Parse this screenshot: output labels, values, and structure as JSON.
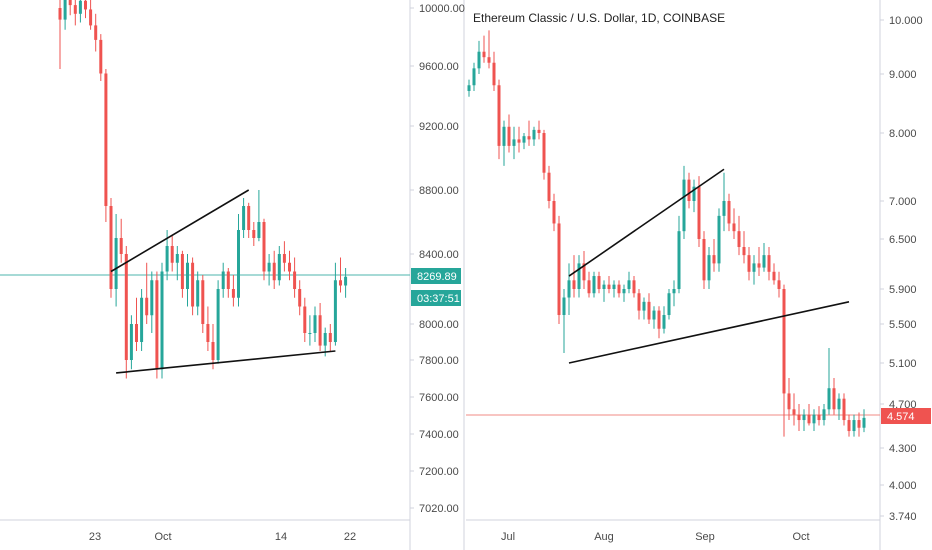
{
  "colors": {
    "up": "#26a69a",
    "down": "#ef5350",
    "axis_text": "#4a4a4a",
    "border": "#d0d3dc",
    "trend": "#111111",
    "left_price_line": "#4db6ac",
    "right_price_line": "#f28b86",
    "left_badge": "#26a69a",
    "right_badge": "#ef5350"
  },
  "chart_data": [
    {
      "type": "candlestick",
      "title": "",
      "scale": "linear",
      "ylim": [
        7000,
        10050
      ],
      "y_ticks": [
        "10000.00",
        "9600.00",
        "9200.00",
        "8800.00",
        "8400.00",
        "8000.00",
        "7800.00",
        "7600.00",
        "7400.00",
        "7200.00",
        "7020.00"
      ],
      "x_ticks": [
        "23",
        "Oct",
        "14",
        "22"
      ],
      "last_price": "8269.89",
      "countdown": "03:37:51",
      "candles": [
        {
          "o": 10000,
          "h": 10120,
          "l": 9580,
          "c": 9920
        },
        {
          "o": 9920,
          "h": 10150,
          "l": 9850,
          "c": 10080
        },
        {
          "o": 10080,
          "h": 10180,
          "l": 9950,
          "c": 10020
        },
        {
          "o": 10020,
          "h": 10100,
          "l": 9880,
          "c": 9960
        },
        {
          "o": 9960,
          "h": 10120,
          "l": 9900,
          "c": 10050
        },
        {
          "o": 10050,
          "h": 10090,
          "l": 9930,
          "c": 9990
        },
        {
          "o": 9990,
          "h": 10060,
          "l": 9850,
          "c": 9880
        },
        {
          "o": 9880,
          "h": 9960,
          "l": 9700,
          "c": 9780
        },
        {
          "o": 9780,
          "h": 9820,
          "l": 9500,
          "c": 9550
        },
        {
          "o": 9550,
          "h": 9580,
          "l": 8600,
          "c": 8700
        },
        {
          "o": 8700,
          "h": 8750,
          "l": 8150,
          "c": 8200
        },
        {
          "o": 8200,
          "h": 8650,
          "l": 8100,
          "c": 8500
        },
        {
          "o": 8500,
          "h": 8620,
          "l": 8350,
          "c": 8400
        },
        {
          "o": 8400,
          "h": 8450,
          "l": 7700,
          "c": 7800
        },
        {
          "o": 7800,
          "h": 8050,
          "l": 7750,
          "c": 8000
        },
        {
          "o": 8000,
          "h": 8150,
          "l": 7850,
          "c": 7900
        },
        {
          "o": 7900,
          "h": 8200,
          "l": 7850,
          "c": 8150
        },
        {
          "o": 8150,
          "h": 8350,
          "l": 8000,
          "c": 8050
        },
        {
          "o": 8050,
          "h": 8300,
          "l": 7950,
          "c": 8250
        },
        {
          "o": 8250,
          "h": 8300,
          "l": 7700,
          "c": 7750
        },
        {
          "o": 7750,
          "h": 8350,
          "l": 7700,
          "c": 8300
        },
        {
          "o": 8300,
          "h": 8550,
          "l": 8250,
          "c": 8450
        },
        {
          "o": 8450,
          "h": 8520,
          "l": 8300,
          "c": 8350
        },
        {
          "o": 8350,
          "h": 8450,
          "l": 8250,
          "c": 8400
        },
        {
          "o": 8400,
          "h": 8420,
          "l": 8150,
          "c": 8200
        },
        {
          "o": 8200,
          "h": 8400,
          "l": 8100,
          "c": 8350
        },
        {
          "o": 8350,
          "h": 8380,
          "l": 8050,
          "c": 8100
        },
        {
          "o": 8100,
          "h": 8300,
          "l": 8050,
          "c": 8250
        },
        {
          "o": 8250,
          "h": 8280,
          "l": 7950,
          "c": 8000
        },
        {
          "o": 8000,
          "h": 8100,
          "l": 7850,
          "c": 7900
        },
        {
          "o": 7900,
          "h": 8000,
          "l": 7750,
          "c": 7800
        },
        {
          "o": 7800,
          "h": 8250,
          "l": 7780,
          "c": 8200
        },
        {
          "o": 8200,
          "h": 8350,
          "l": 8150,
          "c": 8300
        },
        {
          "o": 8300,
          "h": 8320,
          "l": 8150,
          "c": 8200
        },
        {
          "o": 8200,
          "h": 8280,
          "l": 8100,
          "c": 8150
        },
        {
          "o": 8150,
          "h": 8650,
          "l": 8100,
          "c": 8550
        },
        {
          "o": 8550,
          "h": 8750,
          "l": 8500,
          "c": 8700
        },
        {
          "o": 8700,
          "h": 8720,
          "l": 8500,
          "c": 8550
        },
        {
          "o": 8550,
          "h": 8600,
          "l": 8450,
          "c": 8500
        },
        {
          "o": 8500,
          "h": 8800,
          "l": 8480,
          "c": 8600
        },
        {
          "o": 8600,
          "h": 8620,
          "l": 8250,
          "c": 8300
        },
        {
          "o": 8300,
          "h": 8400,
          "l": 8220,
          "c": 8350
        },
        {
          "o": 8350,
          "h": 8420,
          "l": 8200,
          "c": 8250
        },
        {
          "o": 8250,
          "h": 8450,
          "l": 8220,
          "c": 8400
        },
        {
          "o": 8400,
          "h": 8480,
          "l": 8300,
          "c": 8350
        },
        {
          "o": 8350,
          "h": 8420,
          "l": 8250,
          "c": 8300
        },
        {
          "o": 8300,
          "h": 8380,
          "l": 8150,
          "c": 8200
        },
        {
          "o": 8200,
          "h": 8250,
          "l": 8050,
          "c": 8100
        },
        {
          "o": 8100,
          "h": 8150,
          "l": 7900,
          "c": 7950
        },
        {
          "o": 7950,
          "h": 8050,
          "l": 7880,
          "c": 7950
        },
        {
          "o": 7950,
          "h": 8100,
          "l": 7900,
          "c": 8050
        },
        {
          "o": 8050,
          "h": 8120,
          "l": 7850,
          "c": 7880
        },
        {
          "o": 7880,
          "h": 7980,
          "l": 7820,
          "c": 7950
        },
        {
          "o": 7950,
          "h": 8000,
          "l": 7850,
          "c": 7900
        },
        {
          "o": 7900,
          "h": 8350,
          "l": 7880,
          "c": 8250
        },
        {
          "o": 8250,
          "h": 8380,
          "l": 8180,
          "c": 8220
        },
        {
          "o": 8220,
          "h": 8320,
          "l": 8150,
          "c": 8270
        }
      ],
      "trendlines": [
        {
          "from": [
            10,
            8300
          ],
          "to": [
            37,
            8800
          ]
        },
        {
          "from": [
            11,
            7730
          ],
          "to": [
            54,
            7850
          ]
        }
      ]
    },
    {
      "type": "candlestick",
      "title": "Ethereum Classic / U.S. Dollar, 1D, COINBASE",
      "scale": "log",
      "ylim": [
        3.74,
        10.5
      ],
      "y_ticks": [
        "10.000",
        "9.000",
        "8.000",
        "7.000",
        "6.500",
        "5.900",
        "5.500",
        "5.100",
        "4.700",
        "4.300",
        "4.000",
        "3.740"
      ],
      "x_ticks": [
        "Jul",
        "Aug",
        "Sep",
        "Oct"
      ],
      "last_price": "4.574",
      "candles": [
        {
          "o": 8.7,
          "h": 8.9,
          "l": 8.6,
          "c": 8.8
        },
        {
          "o": 8.8,
          "h": 9.2,
          "l": 8.7,
          "c": 9.1
        },
        {
          "o": 9.1,
          "h": 9.6,
          "l": 9.0,
          "c": 9.4
        },
        {
          "o": 9.4,
          "h": 9.7,
          "l": 9.2,
          "c": 9.3
        },
        {
          "o": 9.3,
          "h": 9.8,
          "l": 9.1,
          "c": 9.2
        },
        {
          "o": 9.2,
          "h": 9.4,
          "l": 8.7,
          "c": 8.8
        },
        {
          "o": 8.8,
          "h": 8.9,
          "l": 7.6,
          "c": 7.8
        },
        {
          "o": 7.8,
          "h": 8.2,
          "l": 7.5,
          "c": 8.1
        },
        {
          "o": 8.1,
          "h": 8.3,
          "l": 7.7,
          "c": 7.8
        },
        {
          "o": 7.8,
          "h": 8.1,
          "l": 7.6,
          "c": 7.9
        },
        {
          "o": 7.9,
          "h": 8.1,
          "l": 7.7,
          "c": 7.85
        },
        {
          "o": 7.85,
          "h": 8.0,
          "l": 7.75,
          "c": 7.95
        },
        {
          "o": 7.95,
          "h": 8.2,
          "l": 7.8,
          "c": 7.9
        },
        {
          "o": 7.9,
          "h": 8.1,
          "l": 7.8,
          "c": 8.05
        },
        {
          "o": 8.05,
          "h": 8.2,
          "l": 7.9,
          "c": 8.0
        },
        {
          "o": 8.0,
          "h": 8.05,
          "l": 7.3,
          "c": 7.4
        },
        {
          "o": 7.4,
          "h": 7.5,
          "l": 6.9,
          "c": 7.0
        },
        {
          "o": 7.0,
          "h": 7.1,
          "l": 6.6,
          "c": 6.7
        },
        {
          "o": 6.7,
          "h": 6.8,
          "l": 5.5,
          "c": 5.6
        },
        {
          "o": 5.6,
          "h": 5.9,
          "l": 5.2,
          "c": 5.8
        },
        {
          "o": 5.8,
          "h": 6.2,
          "l": 5.6,
          "c": 6.0
        },
        {
          "o": 6.0,
          "h": 6.3,
          "l": 5.8,
          "c": 5.9
        },
        {
          "o": 5.9,
          "h": 6.3,
          "l": 5.8,
          "c": 6.2
        },
        {
          "o": 6.2,
          "h": 6.35,
          "l": 5.9,
          "c": 6.0
        },
        {
          "o": 6.0,
          "h": 6.1,
          "l": 5.8,
          "c": 5.85
        },
        {
          "o": 5.85,
          "h": 6.1,
          "l": 5.8,
          "c": 6.05
        },
        {
          "o": 6.05,
          "h": 6.1,
          "l": 5.85,
          "c": 5.9
        },
        {
          "o": 5.9,
          "h": 6.0,
          "l": 5.75,
          "c": 5.95
        },
        {
          "o": 5.95,
          "h": 6.05,
          "l": 5.85,
          "c": 5.9
        },
        {
          "o": 5.9,
          "h": 6.0,
          "l": 5.8,
          "c": 5.95
        },
        {
          "o": 5.95,
          "h": 6.0,
          "l": 5.8,
          "c": 5.85
        },
        {
          "o": 5.85,
          "h": 5.95,
          "l": 5.75,
          "c": 5.9
        },
        {
          "o": 5.9,
          "h": 6.1,
          "l": 5.85,
          "c": 6.0
        },
        {
          "o": 6.0,
          "h": 6.05,
          "l": 5.8,
          "c": 5.85
        },
        {
          "o": 5.85,
          "h": 5.9,
          "l": 5.55,
          "c": 5.65
        },
        {
          "o": 5.65,
          "h": 5.8,
          "l": 5.55,
          "c": 5.75
        },
        {
          "o": 5.75,
          "h": 5.85,
          "l": 5.5,
          "c": 5.55
        },
        {
          "o": 5.55,
          "h": 5.7,
          "l": 5.45,
          "c": 5.65
        },
        {
          "o": 5.65,
          "h": 5.7,
          "l": 5.35,
          "c": 5.45
        },
        {
          "o": 5.45,
          "h": 5.7,
          "l": 5.4,
          "c": 5.6
        },
        {
          "o": 5.6,
          "h": 5.9,
          "l": 5.55,
          "c": 5.85
        },
        {
          "o": 5.85,
          "h": 6.0,
          "l": 5.7,
          "c": 5.9
        },
        {
          "o": 5.9,
          "h": 6.8,
          "l": 5.85,
          "c": 6.6
        },
        {
          "o": 6.6,
          "h": 7.5,
          "l": 6.5,
          "c": 7.3
        },
        {
          "o": 7.3,
          "h": 7.4,
          "l": 6.9,
          "c": 7.0
        },
        {
          "o": 7.0,
          "h": 7.3,
          "l": 6.85,
          "c": 7.2
        },
        {
          "o": 7.2,
          "h": 7.35,
          "l": 6.4,
          "c": 6.5
        },
        {
          "o": 6.5,
          "h": 6.6,
          "l": 5.9,
          "c": 6.0
        },
        {
          "o": 6.0,
          "h": 6.4,
          "l": 5.9,
          "c": 6.3
        },
        {
          "o": 6.3,
          "h": 6.5,
          "l": 6.1,
          "c": 6.2
        },
        {
          "o": 6.2,
          "h": 6.9,
          "l": 6.1,
          "c": 6.8
        },
        {
          "o": 6.8,
          "h": 7.4,
          "l": 6.6,
          "c": 7.0
        },
        {
          "o": 7.0,
          "h": 7.1,
          "l": 6.6,
          "c": 6.7
        },
        {
          "o": 6.7,
          "h": 6.9,
          "l": 6.5,
          "c": 6.6
        },
        {
          "o": 6.6,
          "h": 6.8,
          "l": 6.3,
          "c": 6.4
        },
        {
          "o": 6.4,
          "h": 6.6,
          "l": 6.2,
          "c": 6.3
        },
        {
          "o": 6.3,
          "h": 6.4,
          "l": 6.0,
          "c": 6.1
        },
        {
          "o": 6.1,
          "h": 6.3,
          "l": 5.95,
          "c": 6.2
        },
        {
          "o": 6.2,
          "h": 6.4,
          "l": 6.05,
          "c": 6.15
        },
        {
          "o": 6.15,
          "h": 6.45,
          "l": 6.1,
          "c": 6.3
        },
        {
          "o": 6.3,
          "h": 6.4,
          "l": 6.0,
          "c": 6.1
        },
        {
          "o": 6.1,
          "h": 6.2,
          "l": 5.95,
          "c": 6.0
        },
        {
          "o": 6.0,
          "h": 6.1,
          "l": 5.8,
          "c": 5.9
        },
        {
          "o": 5.9,
          "h": 5.95,
          "l": 4.4,
          "c": 4.8
        },
        {
          "o": 4.8,
          "h": 4.95,
          "l": 4.55,
          "c": 4.65
        },
        {
          "o": 4.65,
          "h": 4.8,
          "l": 4.5,
          "c": 4.6
        },
        {
          "o": 4.6,
          "h": 4.7,
          "l": 4.45,
          "c": 4.55
        },
        {
          "o": 4.55,
          "h": 4.65,
          "l": 4.45,
          "c": 4.6
        },
        {
          "o": 4.6,
          "h": 4.7,
          "l": 4.5,
          "c": 4.52
        },
        {
          "o": 4.52,
          "h": 4.65,
          "l": 4.45,
          "c": 4.6
        },
        {
          "o": 4.6,
          "h": 4.68,
          "l": 4.5,
          "c": 4.55
        },
        {
          "o": 4.55,
          "h": 4.7,
          "l": 4.5,
          "c": 4.65
        },
        {
          "o": 4.65,
          "h": 5.25,
          "l": 4.6,
          "c": 4.85
        },
        {
          "o": 4.85,
          "h": 4.95,
          "l": 4.6,
          "c": 4.65
        },
        {
          "o": 4.65,
          "h": 4.8,
          "l": 4.55,
          "c": 4.75
        },
        {
          "o": 4.75,
          "h": 4.8,
          "l": 4.5,
          "c": 4.55
        },
        {
          "o": 4.55,
          "h": 4.6,
          "l": 4.4,
          "c": 4.45
        },
        {
          "o": 4.45,
          "h": 4.6,
          "l": 4.4,
          "c": 4.55
        },
        {
          "o": 4.55,
          "h": 4.62,
          "l": 4.4,
          "c": 4.48
        },
        {
          "o": 4.48,
          "h": 4.65,
          "l": 4.44,
          "c": 4.57
        }
      ],
      "trendlines": [
        {
          "from": [
            20,
            6.05
          ],
          "to": [
            51,
            7.45
          ]
        },
        {
          "from": [
            20,
            5.1
          ],
          "to": [
            76,
            5.75
          ]
        }
      ]
    }
  ]
}
